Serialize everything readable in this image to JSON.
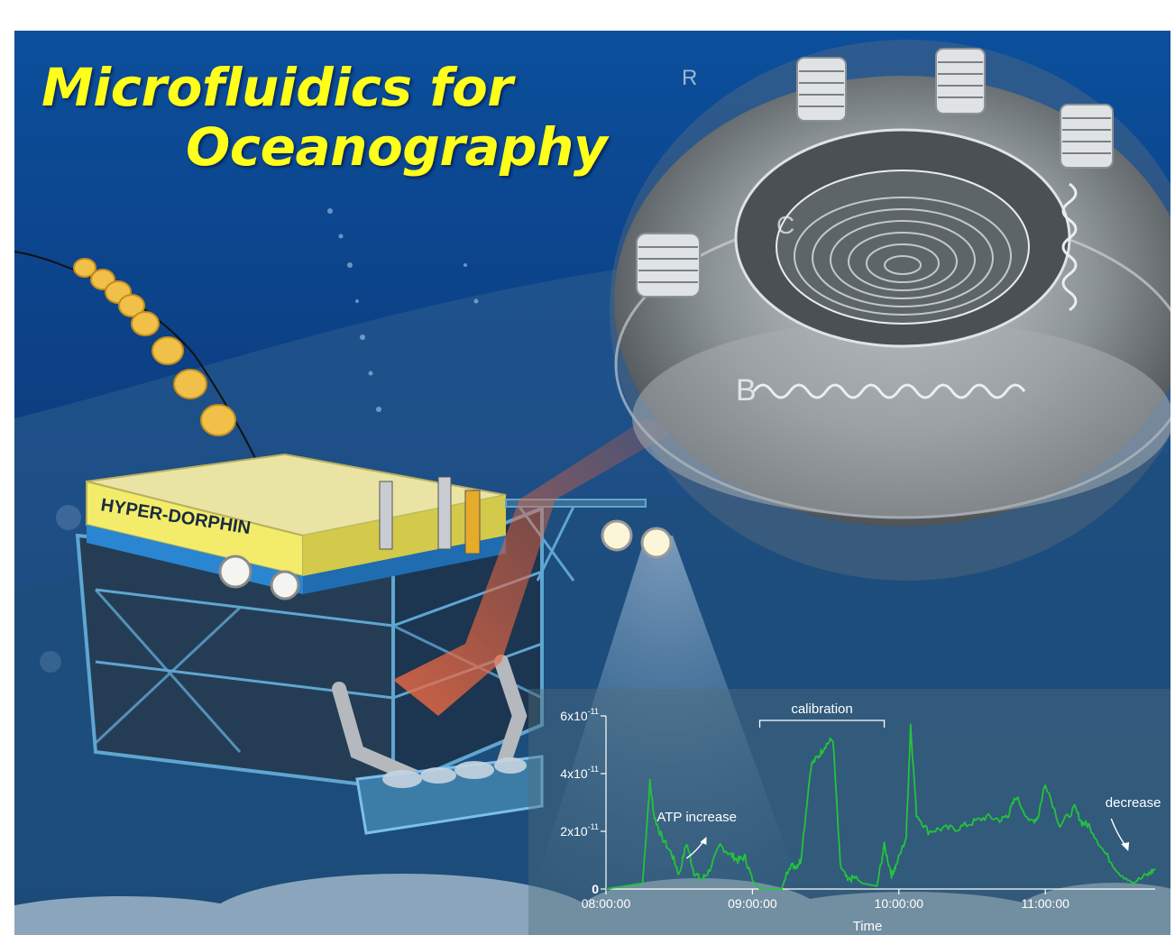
{
  "title": {
    "line1": "Microfluidics for",
    "line2": "Oceanography"
  },
  "vehicle": {
    "label": "HYPER-DORPHIN"
  },
  "chip": {
    "marks": [
      "B",
      "C",
      "R"
    ]
  },
  "colors": {
    "title": "#ffff1a",
    "trace": "#22c43a",
    "ocean": "#0e3a78"
  },
  "chart_data": {
    "type": "line",
    "xlabel": "Time",
    "ylabel": "",
    "x_ticks": [
      "08:00:00",
      "09:00:00",
      "10:00:00",
      "11:00:00"
    ],
    "y_ticks": [
      "0",
      "2x10-11",
      "4x10-11",
      "6x10-11"
    ],
    "y_tick_parts": [
      {
        "base": "0",
        "exp": ""
      },
      {
        "base": "2x10",
        "exp": "-11"
      },
      {
        "base": "4x10",
        "exp": "-11"
      },
      {
        "base": "6x10",
        "exp": "-11"
      }
    ],
    "ylim": [
      0,
      6e-11
    ],
    "xlim_hours": [
      8.0,
      11.75
    ],
    "annotations": {
      "calibration": "calibration",
      "atp_increase": "ATP increase",
      "decrease": "decrease"
    },
    "series": [
      {
        "x": [
          8.0,
          8.25,
          8.3,
          8.33,
          8.38,
          8.45,
          8.5,
          8.55,
          8.6,
          8.65,
          8.7,
          8.78,
          8.85,
          8.9,
          8.95,
          9.0,
          9.05,
          9.2,
          9.25,
          9.3,
          9.33,
          9.4,
          9.45,
          9.5,
          9.55,
          9.6,
          9.65,
          9.7,
          9.75,
          9.85,
          9.9,
          9.95,
          9.98,
          10.05,
          10.08,
          10.12,
          10.2,
          10.3,
          10.4,
          10.5,
          10.6,
          10.7,
          10.75,
          10.8,
          10.9,
          10.95,
          11.0,
          11.1,
          11.2,
          11.25,
          11.3,
          11.4,
          11.5,
          11.6,
          11.7,
          11.75
        ],
        "y": [
          0,
          2e-12,
          3.7e-11,
          2.5e-11,
          1.8e-11,
          1.2e-11,
          5e-12,
          1.6e-11,
          6e-12,
          3e-12,
          6e-12,
          1.5e-11,
          1.2e-11,
          1e-11,
          1.1e-11,
          3e-12,
          0.0,
          0.0,
          8e-12,
          8e-12,
          1e-11,
          4.3e-11,
          4.6e-11,
          5e-11,
          5.2e-11,
          8e-12,
          3e-12,
          4e-12,
          2e-12,
          1e-12,
          1.5e-11,
          5e-12,
          8e-12,
          1.8e-11,
          5.7e-11,
          2.6e-11,
          2e-11,
          2.1e-11,
          2.1e-11,
          2.3e-11,
          2.5e-11,
          2.4e-11,
          2.6e-11,
          3.2e-11,
          2.3e-11,
          2.5e-11,
          3.7e-11,
          2.2e-11,
          2.8e-11,
          2.3e-11,
          2.2e-11,
          1.3e-11,
          6e-12,
          2e-12,
          5e-12,
          7e-12
        ]
      }
    ]
  }
}
